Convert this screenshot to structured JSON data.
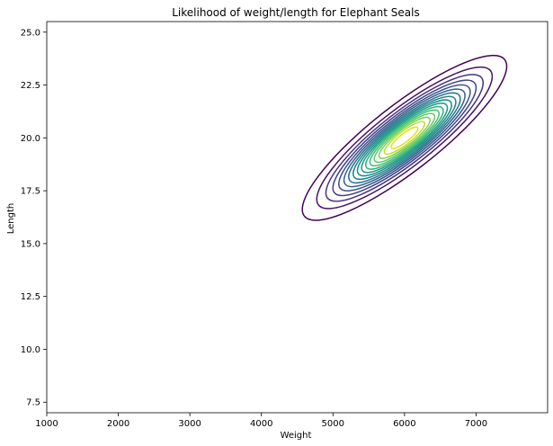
{
  "chart_data": {
    "type": "contour",
    "title": "Likelihood of weight/length for Elephant Seals",
    "xlabel": "Weight",
    "ylabel": "Length",
    "xlim": [
      1000,
      8000
    ],
    "ylim": [
      7.0,
      25.5
    ],
    "xticks": [
      "1000",
      "2000",
      "3000",
      "4000",
      "5000",
      "6000",
      "7000"
    ],
    "yticks": [
      "7.5",
      "10.0",
      "12.5",
      "15.0",
      "17.5",
      "20.0",
      "22.5",
      "25.0"
    ],
    "grid": false,
    "legend": "none",
    "distribution": {
      "center_weight": 6000,
      "center_length": 20.0,
      "major_axis_end": [
        7400,
        23.7
      ],
      "minor_axis_end": [
        6200,
        18.6
      ]
    },
    "contour_levels": [
      0.05,
      0.11,
      0.17,
      0.23,
      0.29,
      0.35,
      0.41,
      0.47,
      0.53,
      0.59,
      0.65,
      0.71,
      0.77,
      0.83,
      0.89,
      0.95
    ],
    "colors": [
      "#440154",
      "#471365",
      "#482475",
      "#463480",
      "#414487",
      "#3b528b",
      "#355f8d",
      "#2f6c8e",
      "#2a788e",
      "#25848e",
      "#21918c",
      "#1e9c89",
      "#22a884",
      "#2fb47c",
      "#44bf70",
      "#5ec962",
      "#7ad151",
      "#9bd93c",
      "#bddf26",
      "#dfe318"
    ]
  }
}
